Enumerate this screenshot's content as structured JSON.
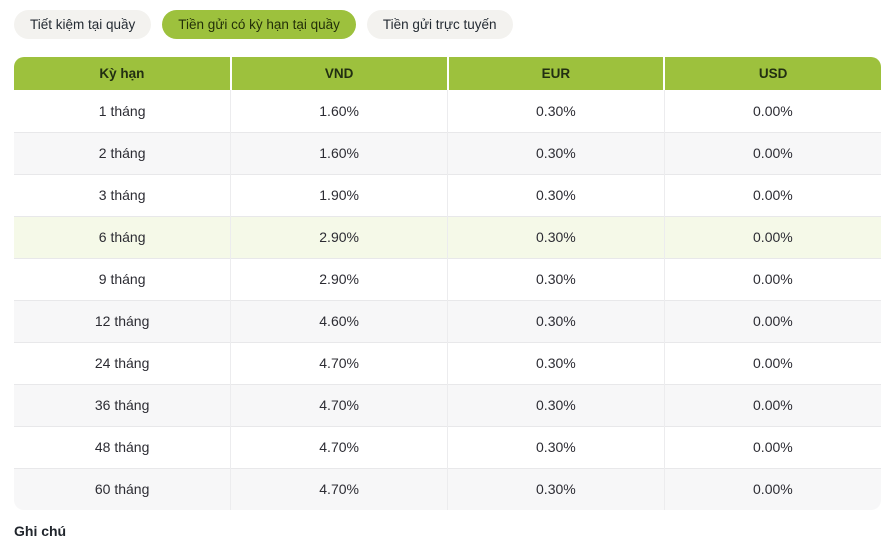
{
  "tabs": {
    "items": [
      {
        "label": "Tiết kiệm tại quầy",
        "active": false
      },
      {
        "label": "Tiền gửi có kỳ hạn tại quầy",
        "active": true
      },
      {
        "label": "Tiền gửi trực tuyến",
        "active": false
      }
    ],
    "active_label": "Tiền gửi có kỳ hạn tại quầy"
  },
  "rates_table": {
    "headers": {
      "term": "Kỳ hạn",
      "vnd": "VND",
      "eur": "EUR",
      "usd": "USD"
    },
    "rows": [
      {
        "term": "1 tháng",
        "vnd": "1.60%",
        "eur": "0.30%",
        "usd": "0.00%"
      },
      {
        "term": "2 tháng",
        "vnd": "1.60%",
        "eur": "0.30%",
        "usd": "0.00%"
      },
      {
        "term": "3 tháng",
        "vnd": "1.90%",
        "eur": "0.30%",
        "usd": "0.00%"
      },
      {
        "term": "6 tháng",
        "vnd": "2.90%",
        "eur": "0.30%",
        "usd": "0.00%"
      },
      {
        "term": "9 tháng",
        "vnd": "2.90%",
        "eur": "0.30%",
        "usd": "0.00%"
      },
      {
        "term": "12 tháng",
        "vnd": "4.60%",
        "eur": "0.30%",
        "usd": "0.00%"
      },
      {
        "term": "24 tháng",
        "vnd": "4.70%",
        "eur": "0.30%",
        "usd": "0.00%"
      },
      {
        "term": "36 tháng",
        "vnd": "4.70%",
        "eur": "0.30%",
        "usd": "0.00%"
      },
      {
        "term": "48 tháng",
        "vnd": "4.70%",
        "eur": "0.30%",
        "usd": "0.00%"
      },
      {
        "term": "60 tháng",
        "vnd": "4.70%",
        "eur": "0.30%",
        "usd": "0.00%"
      }
    ],
    "highlighted_term": "6 tháng"
  },
  "footer": {
    "note_label": "Ghi chú"
  },
  "colors": {
    "accent_green": "#9DC13D",
    "highlight_row": "#F5F9E8",
    "stripe_row": "#F7F7F8",
    "inactive_tab_bg": "#F3F2EF"
  }
}
